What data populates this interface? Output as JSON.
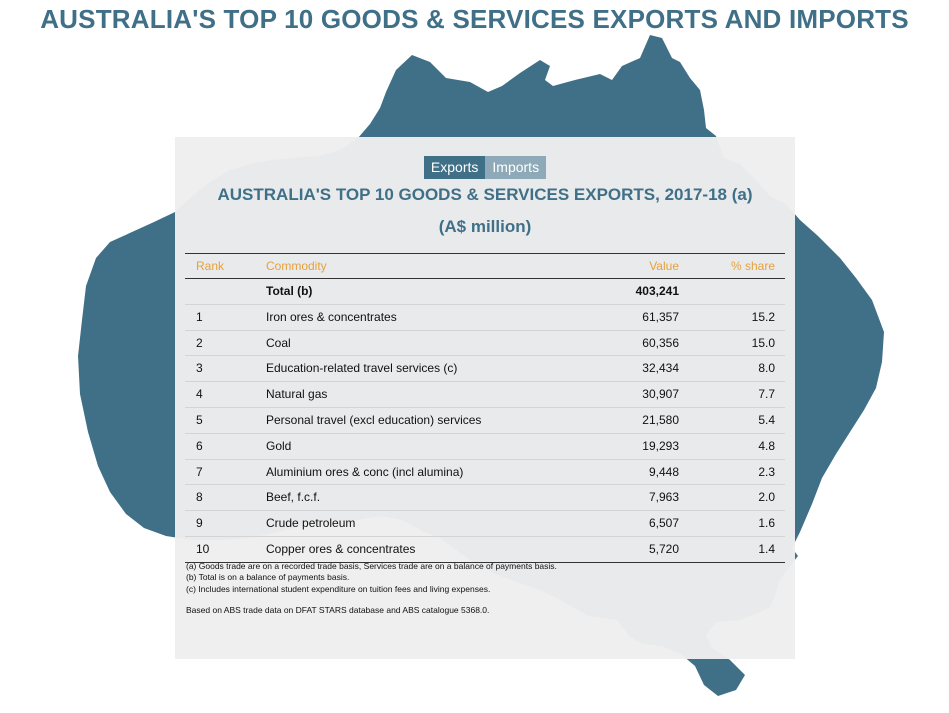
{
  "page_title": "AUSTRALIA'S TOP 10 GOODS & SERVICES EXPORTS AND IMPORTS",
  "colors": {
    "accent": "#3f7088",
    "header_text": "#e8a13a",
    "tab_inactive": "#8eaab8"
  },
  "tabs": [
    {
      "label": "Exports",
      "active": true
    },
    {
      "label": "Imports",
      "active": false
    }
  ],
  "chart_data": {
    "type": "table",
    "title": "AUSTRALIA'S TOP 10 GOODS & SERVICES EXPORTS, 2017-18 (a)",
    "subtitle": "(A$ million)",
    "columns": [
      "Rank",
      "Commodity",
      "Value",
      "% share"
    ],
    "total": {
      "rank": "",
      "commodity": "Total (b)",
      "value": "403,241",
      "share": ""
    },
    "rows": [
      {
        "rank": "1",
        "commodity": "Iron ores & concentrates",
        "value": "61,357",
        "share": "15.2"
      },
      {
        "rank": "2",
        "commodity": "Coal",
        "value": "60,356",
        "share": "15.0"
      },
      {
        "rank": "3",
        "commodity": "Education-related travel services (c)",
        "value": "32,434",
        "share": "8.0"
      },
      {
        "rank": "4",
        "commodity": "Natural gas",
        "value": "30,907",
        "share": "7.7"
      },
      {
        "rank": "5",
        "commodity": "Personal travel (excl education) services",
        "value": "21,580",
        "share": "5.4"
      },
      {
        "rank": "6",
        "commodity": "Gold",
        "value": "19,293",
        "share": "4.8"
      },
      {
        "rank": "7",
        "commodity": "Aluminium ores & conc (incl alumina)",
        "value": "9,448",
        "share": "2.3"
      },
      {
        "rank": "8",
        "commodity": "Beef, f.c.f.",
        "value": "7,963",
        "share": "2.0"
      },
      {
        "rank": "9",
        "commodity": "Crude petroleum",
        "value": "6,507",
        "share": "1.6"
      },
      {
        "rank": "10",
        "commodity": "Copper ores & concentrates",
        "value": "5,720",
        "share": "1.4"
      }
    ]
  },
  "notes": [
    "(a) Goods trade are on a recorded trade basis, Services trade are on a balance of payments basis.",
    "(b) Total is on a balance of payments basis.",
    "(c) Includes international student expenditure on tuition fees and living expenses."
  ],
  "source": "Based on ABS trade data on DFAT STARS database and ABS catalogue 5368.0."
}
